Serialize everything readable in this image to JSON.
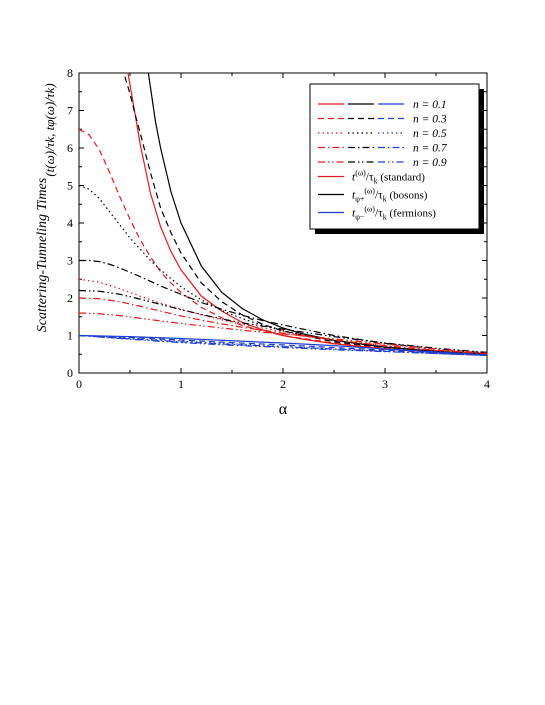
{
  "chart_data": {
    "type": "line",
    "xlabel": "α",
    "ylabel_main": "Scattering-Tunneling Times",
    "ylabel_ratio": "(t(ω)/τk, tφ(ω)/τk)",
    "xlim": [
      0,
      4
    ],
    "ylim": [
      0,
      8
    ],
    "xticks": [
      0,
      1,
      2,
      3,
      4
    ],
    "yticks": [
      0,
      1,
      2,
      3,
      4,
      5,
      6,
      7,
      8
    ],
    "grid": false,
    "legend_position": "top-right",
    "colors": {
      "standard": "#e41a1c",
      "bosons": "#000000",
      "fermions": "#1f3fd1"
    },
    "legend_n": [
      {
        "label": "n = 0.1",
        "dash": "solid"
      },
      {
        "label": "n = 0.3",
        "dash": "dashed"
      },
      {
        "label": "n = 0.5",
        "dash": "dotted"
      },
      {
        "label": "n = 0.7",
        "dash": "dashdot"
      },
      {
        "label": "n = 0.9",
        "dash": "dashdotdot"
      }
    ],
    "legend_kind": [
      {
        "key": "standard",
        "label_main": "t",
        "label_sup": "(ω)",
        "label_rest": "/τ",
        "label_sub": "k",
        "label_note": "(standard)"
      },
      {
        "key": "bosons",
        "label_main": "t",
        "label_sub1": "φ+",
        "label_sup": "(ω)",
        "label_rest": "/τ",
        "label_sub": "k",
        "label_note": "(bosons)"
      },
      {
        "key": "fermions",
        "label_main": "t",
        "label_sub1": "φ−",
        "label_sup": "(ω)",
        "label_rest": "/τ",
        "label_sub": "k",
        "label_note": "(fermions)"
      }
    ],
    "series": [
      {
        "family": "standard",
        "dash": "solid",
        "x": [
          0.48,
          0.55,
          0.6,
          0.7,
          0.8,
          0.9,
          1.0,
          1.2,
          1.4,
          1.6,
          1.8,
          2.0,
          2.2,
          2.5,
          3.0,
          3.5,
          4.0
        ],
        "y": [
          8.0,
          6.9,
          6.1,
          4.8,
          3.9,
          3.25,
          2.75,
          2.05,
          1.65,
          1.35,
          1.15,
          1.0,
          0.9,
          0.78,
          0.64,
          0.55,
          0.49
        ]
      },
      {
        "family": "bosons",
        "dash": "solid",
        "x": [
          0.68,
          0.75,
          0.8,
          0.9,
          1.0,
          1.2,
          1.4,
          1.6,
          1.8,
          2.0,
          2.2,
          2.5,
          3.0,
          3.5,
          4.0
        ],
        "y": [
          8.0,
          6.7,
          6.0,
          4.85,
          4.0,
          2.85,
          2.15,
          1.72,
          1.42,
          1.2,
          1.04,
          0.87,
          0.69,
          0.58,
          0.5
        ]
      },
      {
        "family": "bosons",
        "dash": "dashed",
        "x": [
          0.45,
          0.5,
          0.55,
          0.6,
          0.7,
          0.8,
          0.9,
          1.0,
          1.2,
          1.4,
          1.6,
          1.8,
          2.0,
          2.5,
          3.0,
          3.5,
          4.0
        ],
        "y": [
          7.9,
          7.45,
          6.9,
          6.4,
          5.35,
          4.4,
          3.75,
          3.2,
          2.4,
          1.9,
          1.55,
          1.3,
          1.12,
          0.83,
          0.67,
          0.57,
          0.5
        ]
      },
      {
        "family": "standard",
        "dash": "dashed",
        "x": [
          0.0,
          0.1,
          0.2,
          0.3,
          0.4,
          0.5,
          0.6,
          0.7,
          0.8,
          0.9,
          1.0,
          1.2,
          1.4,
          1.6,
          1.8,
          2.0,
          2.5,
          3.0,
          3.5,
          4.0
        ],
        "y": [
          6.5,
          6.35,
          5.95,
          5.35,
          4.7,
          4.1,
          3.55,
          3.1,
          2.7,
          2.4,
          2.15,
          1.75,
          1.47,
          1.27,
          1.12,
          1.0,
          0.8,
          0.66,
          0.56,
          0.49
        ]
      },
      {
        "family": "bosons",
        "dash": "dotted",
        "x": [
          0.0,
          0.1,
          0.2,
          0.3,
          0.4,
          0.5,
          0.6,
          0.7,
          0.8,
          0.9,
          1.0,
          1.2,
          1.4,
          1.6,
          1.8,
          2.0,
          2.5,
          3.0,
          3.5,
          4.0
        ],
        "y": [
          5.0,
          4.9,
          4.65,
          4.3,
          3.95,
          3.6,
          3.3,
          3.0,
          2.75,
          2.52,
          2.3,
          1.95,
          1.67,
          1.45,
          1.27,
          1.13,
          0.86,
          0.69,
          0.58,
          0.5
        ]
      },
      {
        "family": "standard",
        "dash": "dotted",
        "x": [
          0.0,
          0.2,
          0.4,
          0.6,
          0.8,
          1.0,
          1.2,
          1.4,
          1.6,
          1.8,
          2.0,
          2.5,
          3.0,
          3.5,
          4.0
        ],
        "y": [
          2.5,
          2.42,
          2.25,
          2.05,
          1.86,
          1.7,
          1.55,
          1.42,
          1.3,
          1.2,
          1.1,
          0.88,
          0.72,
          0.6,
          0.5
        ]
      },
      {
        "family": "bosons",
        "dash": "dashdot",
        "x": [
          0.0,
          0.1,
          0.2,
          0.3,
          0.4,
          0.6,
          0.8,
          1.0,
          1.2,
          1.4,
          1.6,
          1.8,
          2.0,
          2.5,
          3.0,
          3.5,
          4.0
        ],
        "y": [
          3.0,
          3.0,
          2.97,
          2.9,
          2.8,
          2.57,
          2.32,
          2.1,
          1.88,
          1.7,
          1.54,
          1.4,
          1.28,
          1.0,
          0.79,
          0.64,
          0.53
        ]
      },
      {
        "family": "standard",
        "dash": "dashdot",
        "x": [
          0.0,
          0.2,
          0.4,
          0.6,
          0.8,
          1.0,
          1.2,
          1.4,
          1.6,
          1.8,
          2.0,
          2.5,
          3.0,
          3.5,
          4.0
        ],
        "y": [
          2.0,
          1.98,
          1.9,
          1.78,
          1.65,
          1.52,
          1.41,
          1.31,
          1.22,
          1.14,
          1.06,
          0.88,
          0.73,
          0.61,
          0.52
        ]
      },
      {
        "family": "bosons",
        "dash": "dashdotdot",
        "x": [
          0.0,
          0.2,
          0.4,
          0.6,
          0.8,
          1.0,
          1.2,
          1.4,
          1.6,
          1.8,
          2.0,
          2.5,
          3.0,
          3.5,
          4.0
        ],
        "y": [
          2.2,
          2.18,
          2.1,
          1.97,
          1.83,
          1.69,
          1.56,
          1.44,
          1.34,
          1.25,
          1.17,
          0.97,
          0.8,
          0.66,
          0.55
        ]
      },
      {
        "family": "standard",
        "dash": "dashdotdot",
        "x": [
          0.0,
          0.2,
          0.4,
          0.6,
          0.8,
          1.0,
          1.2,
          1.4,
          1.6,
          1.8,
          2.0,
          2.5,
          3.0,
          3.5,
          4.0
        ],
        "y": [
          1.6,
          1.58,
          1.53,
          1.46,
          1.39,
          1.32,
          1.26,
          1.2,
          1.14,
          1.09,
          1.04,
          0.91,
          0.77,
          0.64,
          0.53
        ]
      },
      {
        "family": "fermions",
        "dash": "solid",
        "x": [
          0.0,
          0.5,
          1.0,
          1.5,
          2.0,
          2.5,
          3.0,
          3.5,
          4.0
        ],
        "y": [
          1.0,
          0.97,
          0.92,
          0.86,
          0.8,
          0.73,
          0.64,
          0.56,
          0.48
        ]
      },
      {
        "family": "fermions",
        "dash": "dashed",
        "x": [
          0.0,
          0.5,
          1.0,
          1.5,
          2.0,
          2.5,
          3.0,
          3.5,
          4.0
        ],
        "y": [
          1.0,
          0.95,
          0.88,
          0.81,
          0.75,
          0.68,
          0.61,
          0.54,
          0.47
        ]
      },
      {
        "family": "fermions",
        "dash": "dotted",
        "x": [
          0.0,
          0.5,
          1.0,
          1.5,
          2.0,
          2.5,
          3.0,
          3.5,
          4.0
        ],
        "y": [
          1.0,
          0.93,
          0.85,
          0.78,
          0.71,
          0.64,
          0.58,
          0.52,
          0.47
        ]
      },
      {
        "family": "fermions",
        "dash": "dashdot",
        "x": [
          0.0,
          0.5,
          1.0,
          1.5,
          2.0,
          2.5,
          3.0,
          3.5,
          4.0
        ],
        "y": [
          1.0,
          0.91,
          0.83,
          0.76,
          0.7,
          0.64,
          0.58,
          0.52,
          0.47
        ]
      },
      {
        "family": "fermions",
        "dash": "dashdotdot",
        "x": [
          0.0,
          0.5,
          1.0,
          1.5,
          2.0,
          2.5,
          3.0,
          3.5,
          4.0
        ],
        "y": [
          1.0,
          0.9,
          0.81,
          0.74,
          0.68,
          0.62,
          0.57,
          0.52,
          0.47
        ]
      }
    ]
  }
}
